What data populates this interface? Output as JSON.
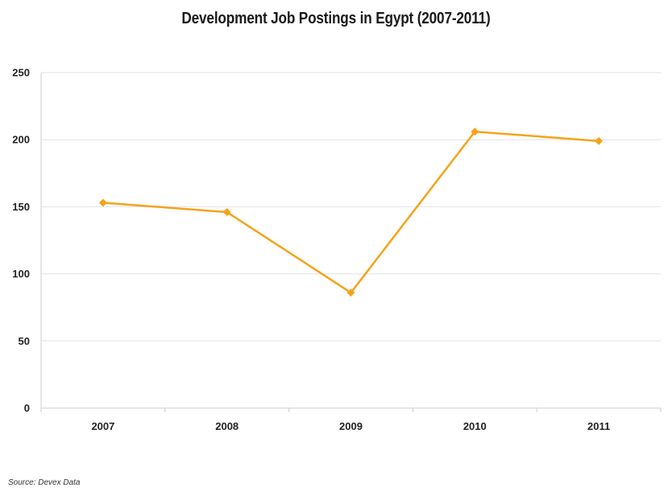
{
  "chart_data": {
    "type": "line",
    "title": "Development Job Postings in Egypt (2007-2011)",
    "categories": [
      "2007",
      "2008",
      "2009",
      "2010",
      "2011"
    ],
    "series": [
      {
        "values": [
          153,
          146,
          86,
          206,
          199
        ],
        "color": "#f5a31a"
      }
    ],
    "ylim": [
      0,
      250
    ],
    "yticks": [
      0,
      50,
      100,
      150,
      200,
      250
    ],
    "ytick_labels": [
      "0",
      "50",
      "100",
      "150",
      "200",
      "250"
    ],
    "grid": true,
    "marker": "diamond",
    "legend": "none"
  },
  "source_note": "Source: Devex Data"
}
